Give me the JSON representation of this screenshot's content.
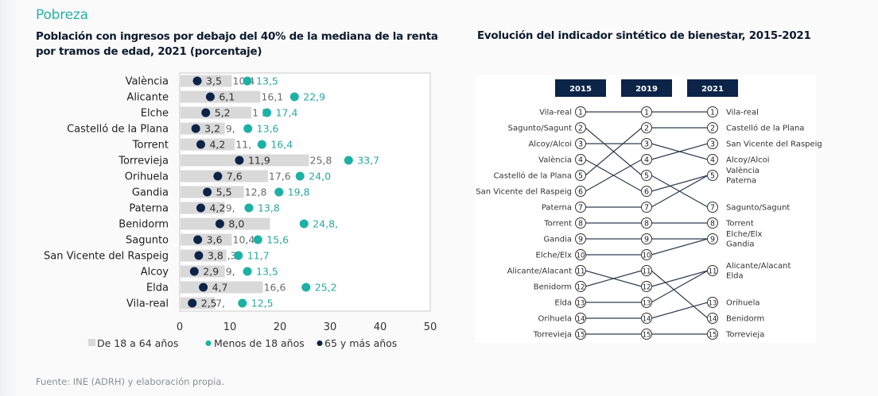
{
  "section_title": "Pobreza",
  "source": "Fuente: INE (ADRH) y elaboración propia.",
  "colors": {
    "bar": "#d9d9d9",
    "teal": "#1cb1a4",
    "navy": "#0b2447",
    "header": "#0b2447",
    "teal_text": "#2aa7a0",
    "gray_text": "#6b6b6b",
    "dark_text": "#303030"
  },
  "chart_data": [
    {
      "type": "bar",
      "title": "Población con ingresos por debajo del 40% de la mediana de la renta por tramos de edad, 2021 (porcentaje)",
      "title_lines": [
        "Población con ingresos por debajo del 40% de la mediana de la renta",
        "por tramos de edad, 2021 (porcentaje)"
      ],
      "orientation": "horizontal",
      "xlim": [
        0,
        50
      ],
      "xticks": [
        "0",
        "10",
        "20",
        "30",
        "40",
        "50"
      ],
      "xtick_values": [
        0,
        10,
        20,
        30,
        40,
        50
      ],
      "legend_position": "bottom",
      "legend": [
        "De 18 a 64 años",
        "Menos de 18 años",
        "65 y más años"
      ],
      "categories": [
        "València",
        "Alicante",
        "Elche",
        "Castelló de la Plana",
        "Torrent",
        "Torrevieja",
        "Orihuela",
        "Gandia",
        "Paterna",
        "Benidorm",
        "Sagunto",
        "San Vicente del Raspeig",
        "Alcoy",
        "Elda",
        "Vila-real"
      ],
      "series": [
        {
          "name": "De 18 a 64 años",
          "kind": "bar",
          "values": [
            10.4,
            16.1,
            14.3,
            9.0,
            11.0,
            25.8,
            17.6,
            12.8,
            9.0,
            18.0,
            10.4,
            9.3,
            9.0,
            16.6,
            7.0
          ],
          "labels": [
            "10,4",
            "16,1",
            "1  3",
            "9,",
            "11,",
            "25,8",
            "17,6",
            "12,8",
            "9,",
            "",
            "10,4",
            ",3",
            "9,",
            "16,6",
            "7,"
          ]
        },
        {
          "name": "Menos de 18 años",
          "kind": "dot",
          "values": [
            13.5,
            22.9,
            17.4,
            13.6,
            16.4,
            33.7,
            24.0,
            19.8,
            13.8,
            24.8,
            15.6,
            11.7,
            13.5,
            25.2,
            12.5
          ],
          "labels": [
            "13,5",
            "22,9",
            "17,4",
            "13,6",
            "16,4",
            "33,7",
            "24,0",
            "19,8",
            "13,8",
            "24,8,",
            "15,6",
            "11,7",
            "13,5",
            "25,2",
            "12,5"
          ]
        },
        {
          "name": "65 y más años",
          "kind": "dot",
          "values": [
            3.5,
            6.1,
            5.2,
            3.2,
            4.2,
            11.9,
            7.6,
            5.5,
            4.2,
            8.0,
            3.6,
            3.8,
            2.9,
            4.7,
            2.5
          ],
          "labels": [
            "3,5",
            "6,1",
            "5,2",
            "3,2",
            "4,2",
            "11,9",
            "7,6",
            "5,5",
            "4,2",
            "8,0",
            "3,6",
            "3,8",
            "2,9",
            "4,7",
            "2,5"
          ]
        }
      ]
    },
    {
      "type": "slope-ranking",
      "title": "Evolución del indicador sintético de bienestar, 2015-2021",
      "years": [
        "2015",
        "2019",
        "2021"
      ],
      "labels_2015": [
        "Vila-real",
        "Sagunto/Sagunt",
        "Alcoy/Alcoi",
        "València",
        "Castelló de la Plana",
        "San Vicente del Raspeig",
        "Paterna",
        "Torrent",
        "Gandia",
        "Elche/Elx",
        "Alicante/Alacant",
        "Benidorm",
        "Elda",
        "Orihuela",
        "Torrevieja"
      ],
      "ranks_2015": [
        1,
        2,
        3,
        4,
        5,
        6,
        7,
        8,
        9,
        10,
        11,
        12,
        13,
        14,
        15
      ],
      "ranks_2019": [
        1,
        5,
        3,
        6,
        2,
        4,
        7,
        8,
        9,
        10,
        12,
        11,
        13,
        14,
        15
      ],
      "ranks_2021": [
        1,
        7,
        4,
        5,
        2,
        3,
        5,
        8,
        9,
        9,
        11,
        14,
        11,
        13,
        15
      ],
      "nodes_2019": [
        "1",
        "2",
        "3",
        "4",
        "5",
        "6",
        "7",
        "8",
        "9",
        "10",
        "11",
        "12",
        "13",
        "14",
        "15"
      ],
      "nodes_2021": [
        "1",
        "2",
        "3",
        "4",
        "5",
        "7",
        "8",
        "9",
        "11",
        "13",
        "14",
        "15"
      ],
      "labels_2021": [
        {
          "rank": "1",
          "text": [
            "Vila-real"
          ]
        },
        {
          "rank": "2",
          "text": [
            "Castelló de la Plana"
          ]
        },
        {
          "rank": "3",
          "text": [
            "San Vicente del Raspeig"
          ]
        },
        {
          "rank": "4",
          "text": [
            "Alcoy/Alcoi"
          ]
        },
        {
          "rank": "5",
          "text": [
            "València",
            "Paterna"
          ]
        },
        {
          "rank": "7",
          "text": [
            "Sagunto/Sagunt"
          ]
        },
        {
          "rank": "8",
          "text": [
            "Torrent"
          ]
        },
        {
          "rank": "9",
          "text": [
            "Elche/Elx",
            "Gandia"
          ]
        },
        {
          "rank": "11",
          "text": [
            "Alicante/Alacant",
            "Elda"
          ]
        },
        {
          "rank": "13",
          "text": [
            "Orihuela"
          ]
        },
        {
          "rank": "14",
          "text": [
            "Benidorm"
          ]
        },
        {
          "rank": "15",
          "text": [
            "Torrevieja"
          ]
        }
      ]
    }
  ]
}
